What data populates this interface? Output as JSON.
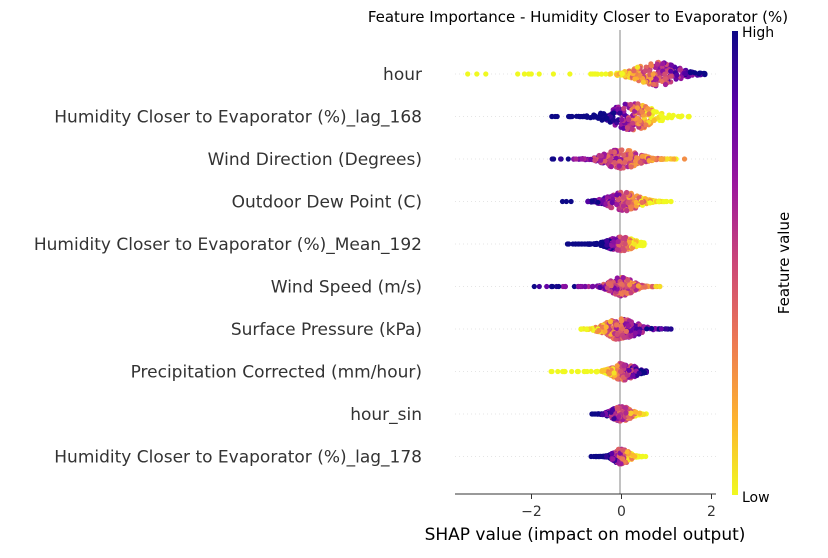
{
  "chart_data": {
    "type": "scatter",
    "title": "Feature Importance - Humidity Closer to Evaporator (%)",
    "xlabel": "SHAP value (impact on model output)",
    "ylabel": "",
    "xlim": [
      -3.7,
      2.1
    ],
    "xticks": [
      -2,
      0,
      2
    ],
    "xtick_labels": [
      "−2",
      "0",
      "2"
    ],
    "colorbar": {
      "label": "Feature value",
      "high_label": "High",
      "low_label": "Low",
      "colormap": "plasma",
      "colors": [
        "#f0f921",
        "#fdb42f",
        "#ed7953",
        "#cc4778",
        "#9c179e",
        "#5c01a6",
        "#0d0887"
      ]
    },
    "features": [
      {
        "name": "hour",
        "min": -3.45,
        "max": 1.85,
        "peak": 0.8,
        "spread": 0.55,
        "width": 0.75,
        "corr": -1
      },
      {
        "name": "Humidity Closer to Evaporator (%)_lag_168",
        "min": -1.55,
        "max": 1.5,
        "peak": 0.25,
        "spread": 0.55,
        "width": 0.85,
        "corr": 1
      },
      {
        "name": "Wind Direction (Degrees)",
        "min": -1.75,
        "max": 1.4,
        "peak": 0.0,
        "spread": 0.45,
        "width": 0.6,
        "corr": 0.3
      },
      {
        "name": "Outdoor Dew Point (C)",
        "min": -1.35,
        "max": 1.1,
        "peak": 0.05,
        "spread": 0.4,
        "width": 0.6,
        "corr": 0.6
      },
      {
        "name": "Humidity Closer to Evaporator (%)_Mean_192",
        "min": -1.25,
        "max": 0.5,
        "peak": 0.0,
        "spread": 0.35,
        "width": 0.45,
        "corr": 0.95
      },
      {
        "name": "Wind Speed (m/s)",
        "min": -1.95,
        "max": 0.85,
        "peak": 0.0,
        "spread": 0.3,
        "width": 0.6,
        "corr": 0.3
      },
      {
        "name": "Surface Pressure (kPa)",
        "min": -0.9,
        "max": 1.1,
        "peak": 0.0,
        "spread": 0.4,
        "width": 0.7,
        "corr": -0.4
      },
      {
        "name": "Precipitation Corrected (mm/hour)",
        "min": -1.65,
        "max": 0.55,
        "peak": 0.05,
        "spread": 0.3,
        "width": 0.55,
        "corr": -0.8
      },
      {
        "name": "hour_sin",
        "min": -0.7,
        "max": 0.55,
        "peak": 0.0,
        "spread": 0.25,
        "width": 0.5,
        "corr": 0.5
      },
      {
        "name": "Humidity Closer to Evaporator (%)_lag_178",
        "min": -0.8,
        "max": 0.55,
        "peak": 0.0,
        "spread": 0.2,
        "width": 0.5,
        "corr": 0.8
      }
    ]
  }
}
